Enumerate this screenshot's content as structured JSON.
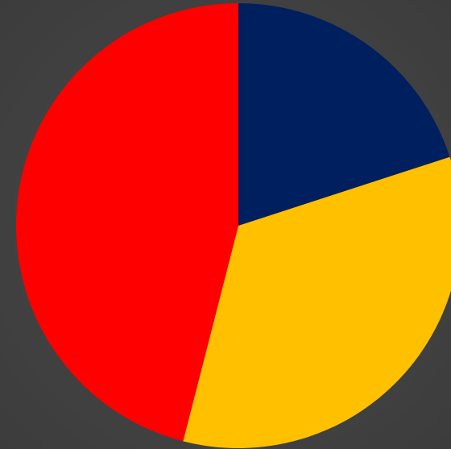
{
  "chart_data": {
    "type": "pie",
    "title": "",
    "start_angle_deg": 0,
    "direction": "clockwise",
    "legend": "none",
    "slices": [
      {
        "value": 20,
        "color": "#001f5f"
      },
      {
        "value": 34,
        "color": "#ffc000"
      },
      {
        "value": 46,
        "color": "#ff0000"
      }
    ]
  },
  "colors": {
    "background": "#424242"
  }
}
